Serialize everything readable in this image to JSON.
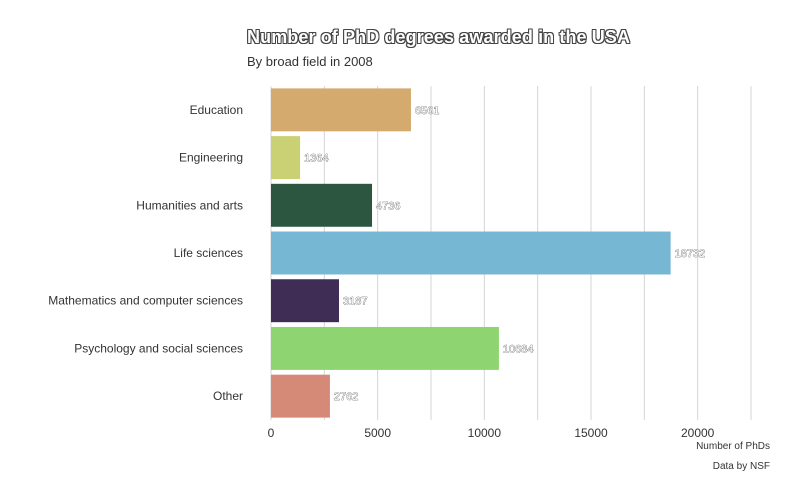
{
  "chart_data": {
    "type": "bar",
    "orientation": "horizontal",
    "title": "Number of PhD degrees awarded in the USA",
    "subtitle": "By broad field in 2008",
    "xlabel": "Number of PhDs",
    "ylabel": "",
    "credit": "Data by NSF",
    "xlim": [
      0,
      22500
    ],
    "xticks": [
      0,
      5000,
      10000,
      15000,
      20000
    ],
    "grid": true,
    "legend": "none",
    "categories": [
      "Education",
      "Engineering",
      "Humanities and arts",
      "Life sciences",
      "Mathematics and computer sciences",
      "Psychology and social sciences",
      "Other"
    ],
    "values": [
      6561,
      1364,
      4736,
      18732,
      3187,
      10684,
      2762
    ],
    "colors": [
      "#D4AA6E",
      "#C9D174",
      "#2C5640",
      "#76B7D4",
      "#3F2D55",
      "#8ED471",
      "#D48A76"
    ]
  }
}
